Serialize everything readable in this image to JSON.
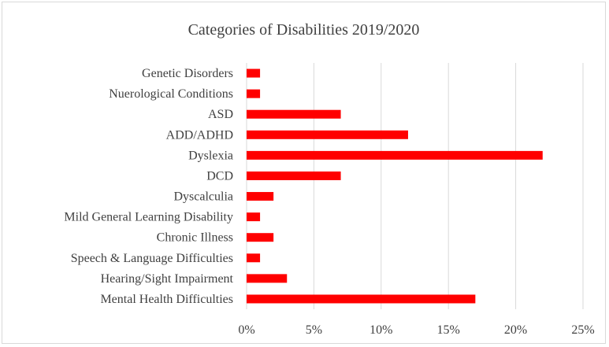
{
  "chart_data": {
    "type": "bar",
    "orientation": "horizontal",
    "title": "Categories of Disabilities 2019/2020",
    "categories": [
      "Genetic Disorders",
      "Nuerological Conditions",
      "ASD",
      "ADD/ADHD",
      "Dyslexia",
      "DCD",
      "Dyscalculia",
      "Mild General Learning Disability",
      "Chronic Illness",
      "Speech & Language Difficulties",
      "Hearing/Sight Impairment",
      "Mental Health Difficulties"
    ],
    "values": [
      1,
      1,
      7,
      12,
      22,
      7,
      2,
      1,
      2,
      1,
      3,
      17
    ],
    "xlim": [
      0,
      25
    ],
    "xticks": [
      0,
      5,
      10,
      15,
      20,
      25
    ],
    "tick_suffix": "%",
    "grid": "vertical",
    "legend": "none",
    "bar_color": "#ff0000",
    "grid_color": "#d9d9d9"
  }
}
